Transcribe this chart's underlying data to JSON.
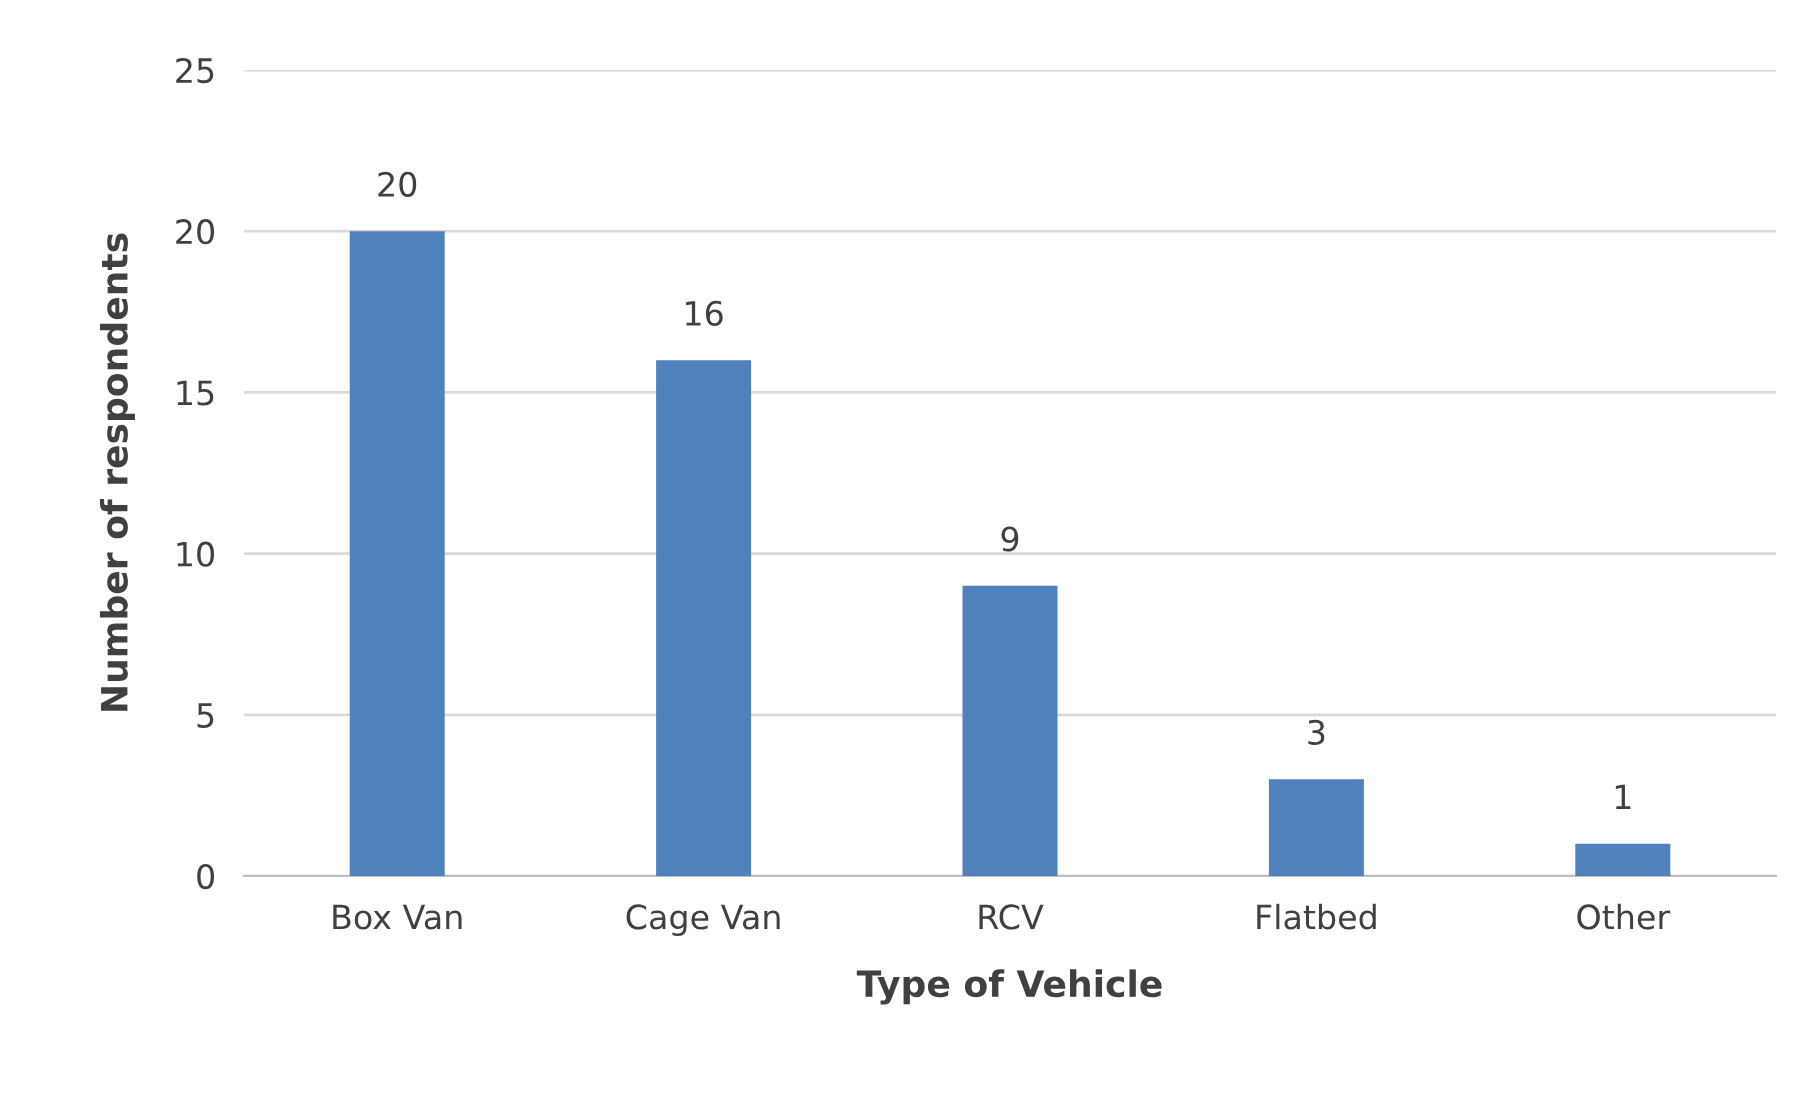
{
  "chart_data": {
    "type": "bar",
    "xlabel": "Type of Vehicle",
    "ylabel": "Number of respondents",
    "categories": [
      "Box Van",
      "Cage Van",
      "RCV",
      "Flatbed",
      "Other"
    ],
    "values": [
      20,
      16,
      9,
      3,
      1
    ],
    "color": "#4f81bd",
    "ylim": [
      0,
      25
    ],
    "yticks": [
      0,
      5,
      10,
      15,
      20,
      25
    ],
    "grid": "y",
    "data_labels": true
  }
}
